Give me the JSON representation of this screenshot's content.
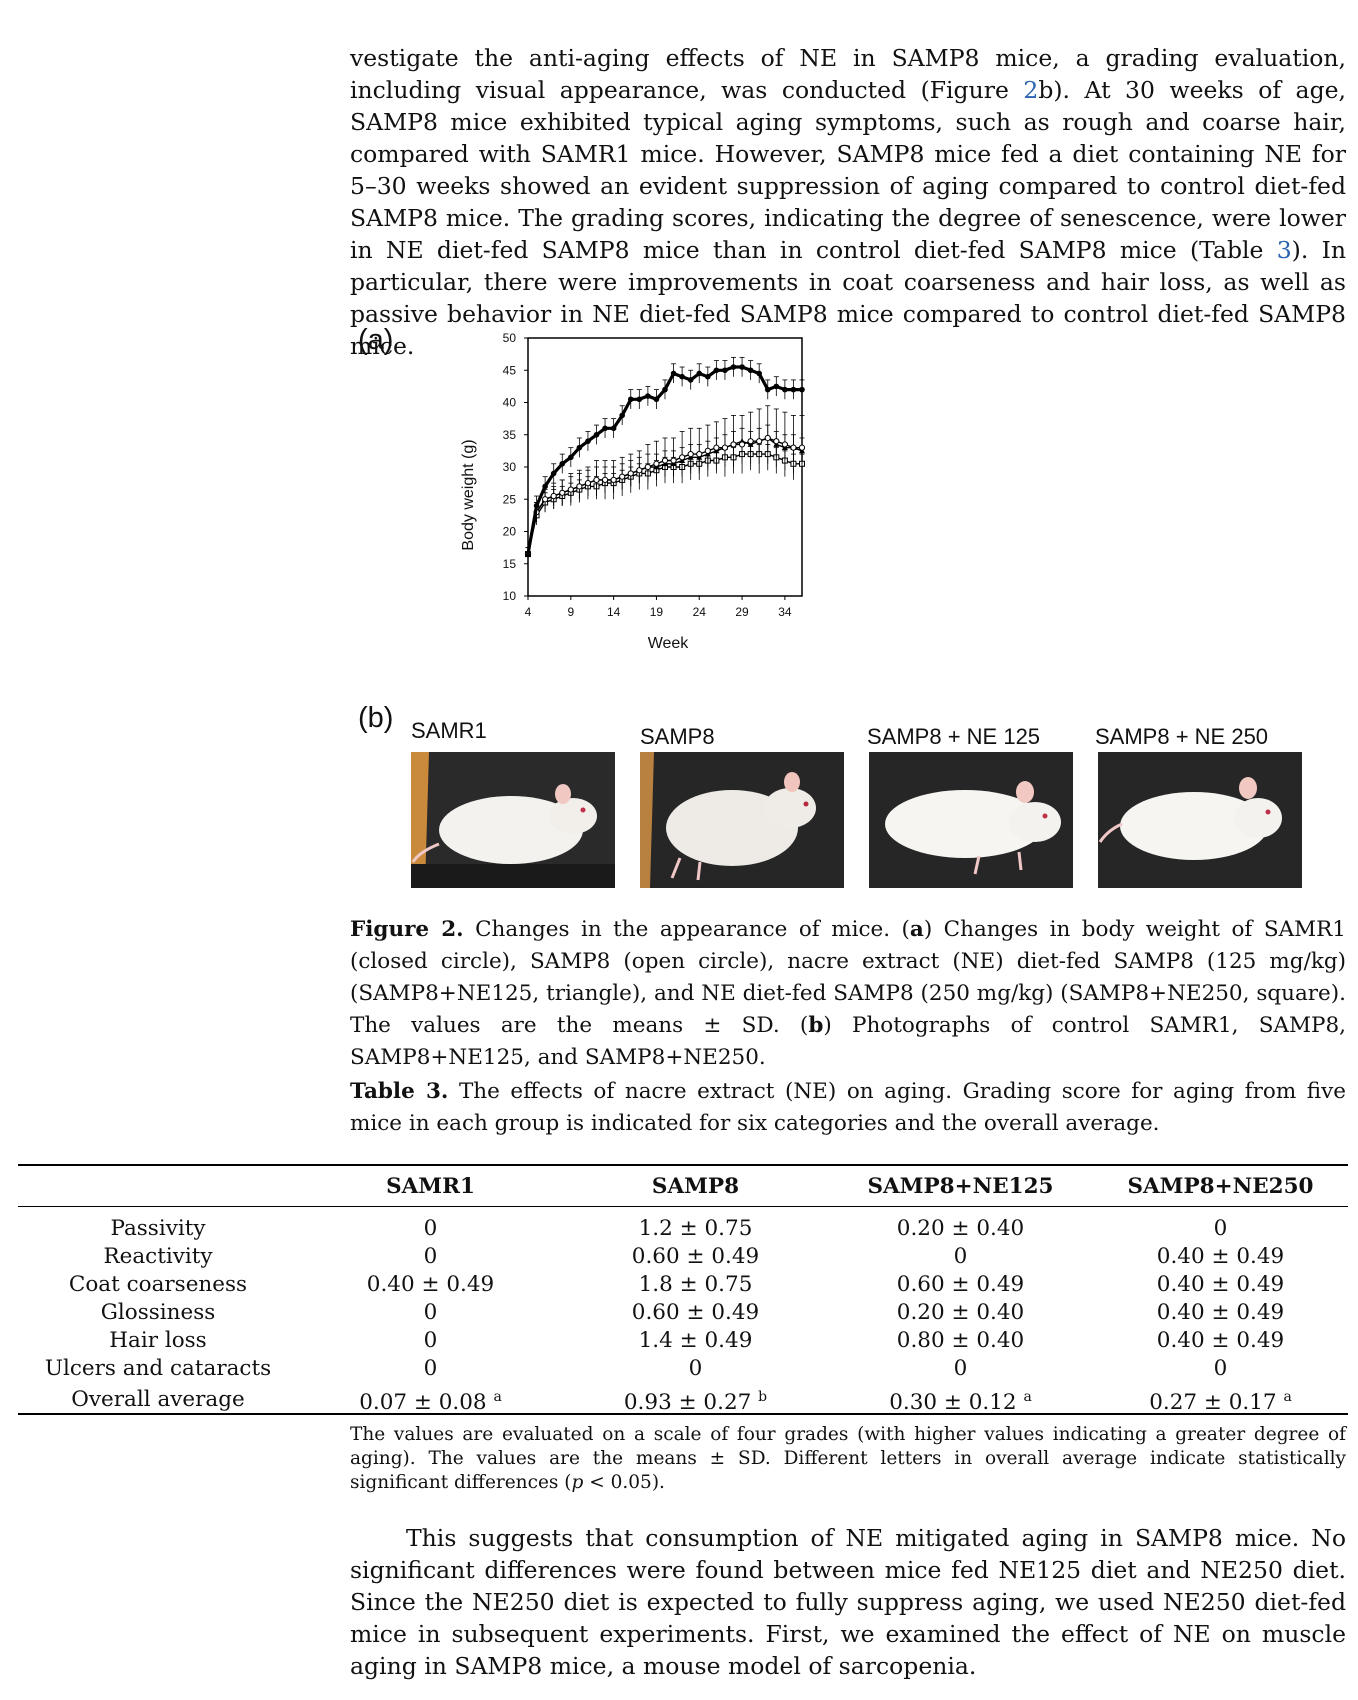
{
  "paragraph_top": {
    "text_before_ref1": "vestigate the anti-aging effects of NE in SAMP8 mice, a grading evaluation, including visual appearance, was conducted (Figure ",
    "ref1": "2",
    "text_after_ref1": "b). At 30 weeks of age, SAMP8 mice exhibited typical aging symptoms, such as rough and coarse hair, compared with SAMR1 mice. However, SAMP8 mice fed a diet containing NE for 5–30 weeks showed an evident suppression of aging compared to control diet-fed SAMP8 mice. The grading scores, indicating the degree of senescence, were lower in NE diet-fed SAMP8 mice than in control diet-fed SAMP8 mice (Table ",
    "ref2": "3",
    "text_after_ref2": "). In particular, there were improvements in coat coarseness and hair loss, as well as passive behavior in NE diet-fed SAMP8 mice compared to control diet-fed SAMP8 mice."
  },
  "figure": {
    "panel_a_label": "(a)",
    "panel_b_label": "(b)",
    "photos": [
      {
        "title": "SAMR1"
      },
      {
        "title": "SAMP8"
      },
      {
        "title": "SAMP8 + NE 125"
      },
      {
        "title": "SAMP8 + NE 250"
      }
    ],
    "caption": {
      "label": "Figure 2.",
      "text_1": " Changes in the appearance of mice. (",
      "a": "a",
      "text_2": ") Changes in body weight of SAMR1 (closed circle), SAMP8 (open circle), nacre extract (NE) diet-fed SAMP8 (125 mg/kg) (SAMP8+NE125, triangle), and NE diet-fed SAMP8 (250 mg/kg) (SAMP8+NE250, square). The values are the means ± SD. (",
      "b": "b",
      "text_3": ") Photographs of control SAMR1, SAMP8, SAMP8+NE125, and SAMP8+NE250."
    }
  },
  "chart_data": {
    "type": "line",
    "title": "",
    "xlabel": "Week",
    "ylabel": "Body weight (g)",
    "xlim": [
      4,
      36
    ],
    "ylim": [
      10,
      50
    ],
    "x_ticks": [
      4,
      9,
      14,
      19,
      24,
      29,
      34
    ],
    "y_ticks": [
      10,
      15,
      20,
      25,
      30,
      35,
      40,
      45,
      50
    ],
    "grid": false,
    "x": [
      4,
      5,
      6,
      7,
      8,
      9,
      10,
      11,
      12,
      13,
      14,
      15,
      16,
      17,
      18,
      19,
      20,
      21,
      22,
      23,
      24,
      25,
      26,
      27,
      28,
      29,
      30,
      31,
      32,
      33,
      34,
      35,
      36
    ],
    "series": [
      {
        "marker": "closed-circle",
        "values": [
          16.5,
          24,
          27,
          29,
          30.5,
          31.5,
          33,
          34,
          35,
          36,
          36,
          38,
          40.5,
          40.5,
          41,
          40.5,
          42,
          44.5,
          44,
          43.5,
          44.5,
          44,
          45,
          45,
          45.5,
          45.5,
          45,
          44.5,
          42,
          42.5,
          42,
          42,
          42
        ],
        "error": [
          1,
          1.5,
          1.5,
          1.5,
          1.5,
          1.5,
          1.5,
          1.5,
          1.5,
          1.5,
          1.5,
          1.5,
          1.5,
          1.5,
          1.5,
          1.5,
          1.5,
          1.5,
          1.5,
          1.5,
          1.5,
          1.5,
          1.5,
          1.5,
          1.5,
          1.5,
          1.5,
          1.5,
          1.5,
          1.5,
          1.5,
          1.5,
          1.5
        ]
      },
      {
        "marker": "open-circle",
        "values": [
          16.5,
          23,
          25,
          25.5,
          26,
          26.5,
          27,
          27.5,
          28,
          28,
          28,
          28.5,
          29,
          29.5,
          30,
          30.5,
          31,
          31,
          31.5,
          32,
          32,
          32.5,
          33,
          33,
          33.5,
          33.5,
          34,
          34,
          34.5,
          34,
          33.5,
          33,
          33
        ],
        "error": [
          1,
          1.5,
          2,
          2,
          2,
          2.5,
          2.5,
          2.5,
          3,
          3,
          3,
          3,
          3,
          3,
          3.5,
          3.5,
          3.5,
          3.5,
          4,
          4,
          4,
          4,
          4,
          4.5,
          4.5,
          4.5,
          4.5,
          5,
          5,
          5,
          5,
          5,
          5
        ]
      },
      {
        "marker": "triangle",
        "values": [
          16.5,
          23,
          25,
          25.5,
          26,
          26.5,
          27,
          27.5,
          28,
          28,
          28,
          28.5,
          29,
          29.5,
          30,
          30,
          30.5,
          30.5,
          31,
          31.5,
          31.5,
          32,
          32.5,
          33,
          33.5,
          34,
          33.5,
          34,
          34.5,
          33.5,
          33,
          33,
          32.5
        ],
        "error": [
          1,
          1.5,
          1.5,
          1.5,
          2,
          2,
          2,
          2,
          2,
          2,
          2,
          2,
          2,
          2,
          2,
          2,
          2,
          2,
          2,
          2,
          2,
          2,
          2,
          2,
          2,
          2,
          2,
          2,
          2,
          2,
          2,
          2,
          2
        ]
      },
      {
        "marker": "square",
        "values": [
          16.5,
          22.5,
          24.5,
          25,
          25.5,
          26,
          26.5,
          27,
          27,
          27.5,
          27.5,
          28,
          28.5,
          29,
          29,
          29.5,
          30,
          30,
          30,
          30.5,
          30.5,
          31,
          31,
          31.5,
          31.5,
          32,
          32,
          32,
          32,
          31.5,
          31,
          30.5,
          30.5
        ],
        "error": [
          1,
          1.5,
          1.5,
          1.5,
          1.5,
          1.5,
          1.5,
          1.5,
          1.5,
          1.5,
          1.5,
          1.5,
          1.5,
          1.5,
          1.5,
          1.5,
          1.5,
          1.5,
          1.5,
          1.5,
          1.5,
          1.5,
          1.5,
          1.5,
          1.5,
          1.5,
          1.5,
          1.5,
          1.5,
          1.5,
          1.5,
          1.5,
          1.5
        ]
      }
    ]
  },
  "table": {
    "caption_label": "Table 3.",
    "caption_text": " The effects of nacre extract (NE) on aging. Grading score for aging from five mice in each group is indicated for six categories and the overall average.",
    "headers": [
      "",
      "SAMR1",
      "SAMP8",
      "SAMP8+NE125",
      "SAMP8+NE250"
    ],
    "rows": [
      [
        "Passivity",
        "0",
        "1.2 ± 0.75",
        "0.20 ± 0.40",
        "0"
      ],
      [
        "Reactivity",
        "0",
        "0.60 ± 0.49",
        "0",
        "0.40 ± 0.49"
      ],
      [
        "Coat coarseness",
        "0.40 ± 0.49",
        "1.8 ± 0.75",
        "0.60 ± 0.49",
        "0.40 ± 0.49"
      ],
      [
        "Glossiness",
        "0",
        "0.60 ± 0.49",
        "0.20 ± 0.40",
        "0.40 ± 0.49"
      ],
      [
        "Hair loss",
        "0",
        "1.4 ± 0.49",
        "0.80 ± 0.40",
        "0.40 ± 0.49"
      ],
      [
        "Ulcers and cataracts",
        "0",
        "0",
        "0",
        "0"
      ]
    ],
    "overall": {
      "label": "Overall average",
      "values": [
        "0.07 ± 0.08 ",
        "0.93 ± 0.27 ",
        "0.30 ± 0.12 ",
        "0.27 ± 0.17 "
      ],
      "letters": [
        "a",
        "b",
        "a",
        "a"
      ]
    },
    "footnote_1": "The values are evaluated on a scale of four grades (with higher values indicating a greater degree of aging). The values are the means ± SD. Different letters in overall average indicate statistically significant differences (",
    "footnote_p": "p",
    "footnote_2": " < 0.05)."
  },
  "paragraph_bottom": "This suggests that consumption of NE mitigated aging in SAMP8 mice. No significant differences were found between mice fed NE125 diet and NE250 diet. Since the NE250 diet is expected to fully suppress aging, we used NE250 diet-fed mice in subsequent experiments. First, we examined the effect of NE on muscle aging in SAMP8 mice, a mouse model of sarcopenia."
}
